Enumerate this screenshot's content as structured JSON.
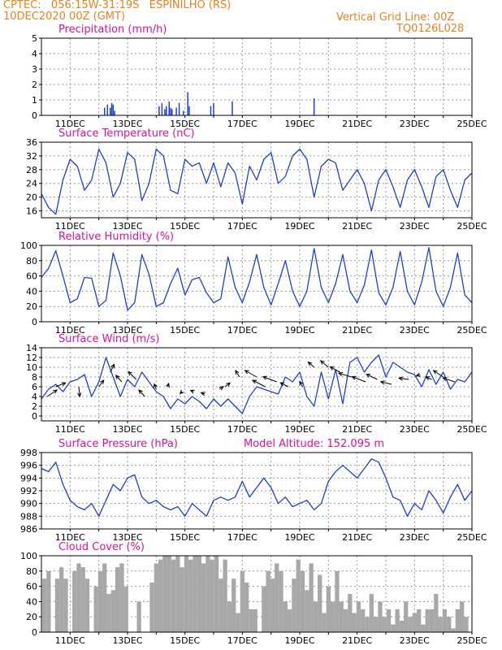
{
  "header": {
    "line1_left": "CPTEC:   056:15W-31:19S   ESPINILHO (RS)",
    "line2_left": "10DEC2020 00Z (GMT)",
    "line1_right": "Vertical Grid Line: 00Z",
    "line2_right": "TQ0126L028"
  },
  "colors": {
    "header": "#e8821e",
    "title": "#e0109a",
    "line": "#1f3fd6",
    "bar": "#1f3fd6",
    "cloud": "#a8a8a8",
    "grid": "#9a9a9a"
  },
  "x_axis": {
    "day_start": 10,
    "day_end": 25,
    "tick_labels": [
      "11DEC",
      "13DEC",
      "15DEC",
      "17DEC",
      "19DEC",
      "21DEC",
      "23DEC",
      "25DEC"
    ],
    "tick_days": [
      11,
      13,
      15,
      17,
      19,
      21,
      23,
      25
    ]
  },
  "chart_data": [
    {
      "type": "bar",
      "title": "Precipitation (mm/h)",
      "ylim": [
        0,
        5
      ],
      "yticks": [
        0,
        1,
        2,
        3,
        4,
        5
      ],
      "x": [
        12.2,
        12.3,
        12.4,
        12.45,
        12.5,
        12.55,
        14.1,
        14.2,
        14.3,
        14.35,
        14.45,
        14.5,
        14.55,
        14.7,
        14.8,
        14.95,
        15.1,
        15.15,
        15.9,
        16.0,
        16.65,
        19.5
      ],
      "values": [
        0.5,
        0.7,
        0.5,
        0.8,
        0.7,
        0.3,
        0.6,
        0.8,
        0.4,
        0.6,
        0.9,
        0.5,
        0.4,
        0.5,
        0.8,
        0.3,
        1.5,
        0.6,
        0.6,
        0.8,
        0.9,
        1.1
      ]
    },
    {
      "type": "line",
      "title": "Surface Temperature (nC)",
      "ylim": [
        14,
        36
      ],
      "yticks": [
        16,
        20,
        24,
        28,
        32,
        36
      ],
      "x": [
        10.0,
        10.25,
        10.5,
        10.75,
        11.0,
        11.25,
        11.5,
        11.75,
        12.0,
        12.25,
        12.5,
        12.75,
        13.0,
        13.25,
        13.5,
        13.75,
        14.0,
        14.25,
        14.5,
        14.75,
        15.0,
        15.25,
        15.5,
        15.75,
        16.0,
        16.25,
        16.5,
        16.75,
        17.0,
        17.25,
        17.5,
        17.75,
        18.0,
        18.25,
        18.5,
        18.75,
        19.0,
        19.25,
        19.5,
        19.75,
        20.0,
        20.25,
        20.5,
        20.75,
        21.0,
        21.25,
        21.5,
        21.75,
        22.0,
        22.25,
        22.5,
        22.75,
        23.0,
        23.25,
        23.5,
        23.75,
        24.0,
        24.25,
        24.5,
        24.75,
        25.0
      ],
      "values": [
        21,
        17,
        15,
        25,
        31,
        29,
        22,
        25,
        34,
        30,
        20,
        24,
        33,
        31,
        19,
        24,
        34,
        32,
        22,
        21,
        31,
        29,
        30,
        24,
        30,
        23,
        30,
        27,
        18,
        29,
        25,
        31,
        33,
        24,
        26,
        32,
        34,
        31,
        20,
        29,
        31,
        30,
        22,
        25,
        28,
        24,
        16,
        25,
        28,
        23,
        17,
        25,
        28,
        23,
        17,
        26,
        28,
        22,
        17,
        25,
        27
      ]
    },
    {
      "type": "line",
      "title": "Relative Humidity (%)",
      "ylim": [
        0,
        100
      ],
      "yticks": [
        0,
        20,
        40,
        60,
        80,
        100
      ],
      "x": [
        10.0,
        10.25,
        10.5,
        10.75,
        11.0,
        11.25,
        11.5,
        11.75,
        12.0,
        12.25,
        12.5,
        12.75,
        13.0,
        13.25,
        13.5,
        13.75,
        14.0,
        14.25,
        14.5,
        14.75,
        15.0,
        15.25,
        15.5,
        15.75,
        16.0,
        16.25,
        16.5,
        16.75,
        17.0,
        17.25,
        17.5,
        17.75,
        18.0,
        18.25,
        18.5,
        18.75,
        19.0,
        19.25,
        19.5,
        19.75,
        20.0,
        20.25,
        20.5,
        20.75,
        21.0,
        21.25,
        21.5,
        21.75,
        22.0,
        22.25,
        22.5,
        22.75,
        23.0,
        23.25,
        23.5,
        23.75,
        24.0,
        24.25,
        24.5,
        24.75,
        25.0
      ],
      "values": [
        58,
        70,
        93,
        60,
        25,
        30,
        58,
        57,
        20,
        28,
        90,
        60,
        15,
        25,
        88,
        62,
        20,
        25,
        50,
        70,
        35,
        55,
        58,
        38,
        25,
        30,
        85,
        45,
        25,
        52,
        88,
        45,
        22,
        50,
        80,
        40,
        20,
        40,
        96,
        45,
        25,
        50,
        88,
        40,
        25,
        48,
        94,
        38,
        22,
        45,
        92,
        40,
        22,
        52,
        97,
        40,
        20,
        45,
        90,
        35,
        25
      ]
    },
    {
      "type": "line",
      "title": "Surface Wind (m/s)",
      "ylim": [
        -1,
        14
      ],
      "yticks": [
        0,
        2,
        4,
        6,
        8,
        10,
        12,
        14
      ],
      "x": [
        10.0,
        10.25,
        10.5,
        10.75,
        11.0,
        11.25,
        11.5,
        11.75,
        12.0,
        12.25,
        12.5,
        12.75,
        13.0,
        13.25,
        13.5,
        13.75,
        14.0,
        14.25,
        14.5,
        14.75,
        15.0,
        15.25,
        15.5,
        15.75,
        16.0,
        16.25,
        16.5,
        16.75,
        17.0,
        17.25,
        17.5,
        17.75,
        18.0,
        18.25,
        18.5,
        18.75,
        19.0,
        19.25,
        19.5,
        19.75,
        20.0,
        20.25,
        20.5,
        20.75,
        21.0,
        21.25,
        21.5,
        21.75,
        22.0,
        22.25,
        22.5,
        22.75,
        23.0,
        23.25,
        23.5,
        23.75,
        24.0,
        24.25,
        24.5,
        24.75,
        25.0
      ],
      "values": [
        3.5,
        5.5,
        6.5,
        5.0,
        7.0,
        7.5,
        8.5,
        4.0,
        7.0,
        12.0,
        8.0,
        4.0,
        7.5,
        6.0,
        9.0,
        7.0,
        5.0,
        4.0,
        1.5,
        3.5,
        2.5,
        4.0,
        3.0,
        1.5,
        3.5,
        2.0,
        3.5,
        2.0,
        0.5,
        4.0,
        6.0,
        5.5,
        5.0,
        4.5,
        8.0,
        7.0,
        9.0,
        4.0,
        2.0,
        9.0,
        3.5,
        9.5,
        2.5,
        11.0,
        12.0,
        9.0,
        11.0,
        12.5,
        8.0,
        11.0,
        10.0,
        9.0,
        8.5,
        6.0,
        9.5,
        6.5,
        9.0,
        5.5,
        7.5,
        7.0,
        9.0
      ],
      "arrows": [
        {
          "x": 10.2,
          "y": 4.0,
          "u": 1.0,
          "v": 1.0
        },
        {
          "x": 10.5,
          "y": 6.0,
          "u": 1.0,
          "v": 0.6
        },
        {
          "x": 11.3,
          "y": 6.0,
          "u": 0.1,
          "v": -1.5
        },
        {
          "x": 12.0,
          "y": 6.0,
          "u": 0.5,
          "v": 1.0
        },
        {
          "x": 12.4,
          "y": 9.0,
          "u": 0.4,
          "v": 1.2
        },
        {
          "x": 12.8,
          "y": 7.0,
          "u": -0.6,
          "v": 1.0
        },
        {
          "x": 13.3,
          "y": 7.5,
          "u": -0.8,
          "v": 1.2
        },
        {
          "x": 13.6,
          "y": 4.0,
          "u": -0.6,
          "v": 1.0
        },
        {
          "x": 14.0,
          "y": 5.5,
          "u": -0.2,
          "v": 0.8
        },
        {
          "x": 14.4,
          "y": 6.0,
          "u": 0.1,
          "v": 0.5
        },
        {
          "x": 14.9,
          "y": 5.0,
          "u": -0.2,
          "v": -0.3
        },
        {
          "x": 15.3,
          "y": 5.0,
          "u": -0.3,
          "v": 0.2
        },
        {
          "x": 15.7,
          "y": 4.5,
          "u": -0.4,
          "v": 0.2
        },
        {
          "x": 16.2,
          "y": 5.5,
          "u": 0.4,
          "v": 0.4
        },
        {
          "x": 16.4,
          "y": 6.0,
          "u": 0.5,
          "v": 0.6
        },
        {
          "x": 16.9,
          "y": 8.0,
          "u": -0.4,
          "v": 1.0
        },
        {
          "x": 17.5,
          "y": 8.0,
          "u": -1.2,
          "v": 1.0
        },
        {
          "x": 17.8,
          "y": 6.0,
          "u": -1.3,
          "v": 1.0
        },
        {
          "x": 18.2,
          "y": 7.0,
          "u": -1.4,
          "v": 0.8
        },
        {
          "x": 18.6,
          "y": 6.0,
          "u": -0.8,
          "v": 0.6
        },
        {
          "x": 19.1,
          "y": 6.0,
          "u": -0.3,
          "v": 0.8
        },
        {
          "x": 19.5,
          "y": 10.0,
          "u": -0.6,
          "v": 0.8
        },
        {
          "x": 20.0,
          "y": 10.0,
          "u": -0.8,
          "v": 1.0
        },
        {
          "x": 20.4,
          "y": 9.0,
          "u": -1.0,
          "v": 0.8
        },
        {
          "x": 20.8,
          "y": 8.0,
          "u": -1.3,
          "v": 0.6
        },
        {
          "x": 21.3,
          "y": 7.0,
          "u": -1.4,
          "v": 0.8
        },
        {
          "x": 21.7,
          "y": 7.5,
          "u": -1.1,
          "v": 0.8
        },
        {
          "x": 22.2,
          "y": 6.5,
          "u": -1.1,
          "v": 0.4
        },
        {
          "x": 22.8,
          "y": 7.5,
          "u": -1.0,
          "v": 0.2
        },
        {
          "x": 23.2,
          "y": 8.5,
          "u": -0.4,
          "v": -0.2
        },
        {
          "x": 23.6,
          "y": 7.5,
          "u": -0.6,
          "v": 0.4
        },
        {
          "x": 24.0,
          "y": 8.0,
          "u": -1.0,
          "v": 1.0
        },
        {
          "x": 24.4,
          "y": 7.0,
          "u": -1.2,
          "v": 0.6
        }
      ]
    },
    {
      "type": "line",
      "title": "Surface Pressure (hPa)",
      "subtitle": "Model Altitude: 152.095 m",
      "ylim": [
        986,
        998
      ],
      "yticks": [
        986,
        988,
        990,
        992,
        994,
        996,
        998
      ],
      "x": [
        10.0,
        10.25,
        10.5,
        10.75,
        11.0,
        11.25,
        11.5,
        11.75,
        12.0,
        12.25,
        12.5,
        12.75,
        13.0,
        13.25,
        13.5,
        13.75,
        14.0,
        14.25,
        14.5,
        14.75,
        15.0,
        15.25,
        15.5,
        15.75,
        16.0,
        16.25,
        16.5,
        16.75,
        17.0,
        17.25,
        17.5,
        17.75,
        18.0,
        18.25,
        18.5,
        18.75,
        19.0,
        19.25,
        19.5,
        19.75,
        20.0,
        20.25,
        20.5,
        20.75,
        21.0,
        21.25,
        21.5,
        21.75,
        22.0,
        22.25,
        22.5,
        22.75,
        23.0,
        23.25,
        23.5,
        23.75,
        24.0,
        24.25,
        24.5,
        24.75,
        25.0
      ],
      "values": [
        995.5,
        995.0,
        996.5,
        993.0,
        990.5,
        989.5,
        989.0,
        990.0,
        988.0,
        990.5,
        993.0,
        992.0,
        994.0,
        994.5,
        991.0,
        990.0,
        990.5,
        989.5,
        989.0,
        989.5,
        988.0,
        990.0,
        989.0,
        988.0,
        990.5,
        991.0,
        990.5,
        991.0,
        993.5,
        991.0,
        992.5,
        994.0,
        992.5,
        990.0,
        991.0,
        989.5,
        990.0,
        990.5,
        989.0,
        990.0,
        993.5,
        995.0,
        996.0,
        995.0,
        994.0,
        995.5,
        997.0,
        996.5,
        994.0,
        991.0,
        990.5,
        988.0,
        990.0,
        989.0,
        992.0,
        990.5,
        988.5,
        991.0,
        993.0,
        990.5,
        992.0
      ]
    },
    {
      "type": "bar",
      "title": "Cloud Cover (%)",
      "ylim": [
        0,
        100
      ],
      "yticks": [
        0,
        20,
        40,
        60,
        80,
        100
      ],
      "x": [
        10.1,
        10.25,
        10.4,
        10.55,
        10.7,
        10.85,
        11.0,
        11.15,
        11.3,
        11.45,
        11.6,
        11.75,
        11.9,
        12.05,
        12.2,
        12.35,
        12.5,
        12.65,
        12.8,
        12.95,
        13.1,
        13.25,
        13.4,
        13.55,
        13.7,
        13.85,
        14.0,
        14.15,
        14.3,
        14.45,
        14.6,
        14.75,
        14.9,
        15.05,
        15.2,
        15.35,
        15.5,
        15.65,
        15.8,
        15.95,
        16.1,
        16.25,
        16.4,
        16.55,
        16.7,
        16.85,
        17.0,
        17.15,
        17.3,
        17.45,
        17.6,
        17.75,
        17.9,
        18.05,
        18.2,
        18.35,
        18.5,
        18.65,
        18.8,
        18.95,
        19.1,
        19.25,
        19.4,
        19.55,
        19.7,
        19.85,
        20.0,
        20.15,
        20.3,
        20.45,
        20.6,
        20.75,
        20.9,
        21.05,
        21.2,
        21.35,
        21.5,
        21.65,
        21.8,
        21.95,
        22.1,
        22.25,
        22.4,
        22.55,
        22.7,
        22.85,
        23.0,
        23.15,
        23.3,
        23.45,
        23.6,
        23.75,
        23.9,
        24.05,
        24.2,
        24.35,
        24.5,
        24.65,
        24.8,
        24.95
      ],
      "values": [
        70,
        80,
        0,
        70,
        85,
        70,
        0,
        80,
        90,
        85,
        70,
        0,
        60,
        80,
        90,
        50,
        55,
        85,
        90,
        60,
        0,
        0,
        40,
        0,
        0,
        65,
        90,
        95,
        100,
        100,
        95,
        100,
        85,
        100,
        95,
        100,
        100,
        90,
        100,
        95,
        100,
        70,
        95,
        40,
        70,
        25,
        80,
        65,
        30,
        30,
        0,
        60,
        80,
        70,
        90,
        80,
        40,
        30,
        70,
        95,
        80,
        55,
        90,
        40,
        75,
        25,
        60,
        40,
        80,
        40,
        30,
        50,
        25,
        40,
        30,
        20,
        50,
        20,
        40,
        20,
        30,
        10,
        30,
        15,
        40,
        20,
        25,
        30,
        10,
        30,
        30,
        50,
        20,
        30,
        20,
        5,
        30,
        40,
        20,
        0
      ]
    }
  ]
}
